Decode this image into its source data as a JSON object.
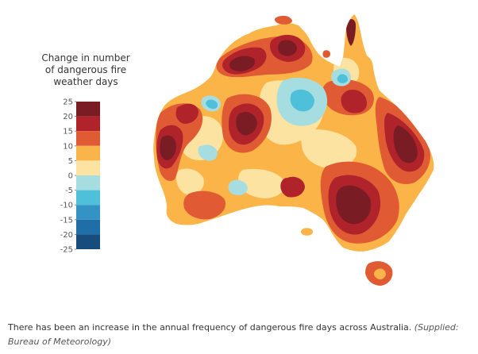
{
  "legend": {
    "title_lines": [
      "Change in number",
      "of dangerous fire",
      "weather days"
    ],
    "ticks": [
      "25",
      "20",
      "15",
      "10",
      "5",
      "0",
      "-5",
      "-10",
      "-15",
      "-20",
      "-25"
    ],
    "bands": [
      {
        "from": 20,
        "to": 25,
        "color": "#7a1c24"
      },
      {
        "from": 15,
        "to": 20,
        "color": "#b0232b"
      },
      {
        "from": 10,
        "to": 15,
        "color": "#e05a33"
      },
      {
        "from": 5,
        "to": 10,
        "color": "#f9b44a"
      },
      {
        "from": 0,
        "to": 5,
        "color": "#fde3a2"
      },
      {
        "from": -5,
        "to": 0,
        "color": "#a6dde1"
      },
      {
        "from": -10,
        "to": -5,
        "color": "#4ec0da"
      },
      {
        "from": -15,
        "to": -10,
        "color": "#3393c3"
      },
      {
        "from": -20,
        "to": -15,
        "color": "#1f6ea7"
      },
      {
        "from": -25,
        "to": -20,
        "color": "#164d7d"
      }
    ]
  },
  "caption": {
    "text": "There has been an increase in the annual frequency of dangerous fire days across Australia.",
    "source": "(Supplied: Bureau of Meteorology)"
  },
  "colors": {
    "base": "#fbb448",
    "light": "#fde3a2",
    "orange": "#e05a33",
    "red": "#b0232b",
    "darkred": "#7a1c24",
    "lightblue": "#a6dde1",
    "blue": "#4ec0da"
  }
}
